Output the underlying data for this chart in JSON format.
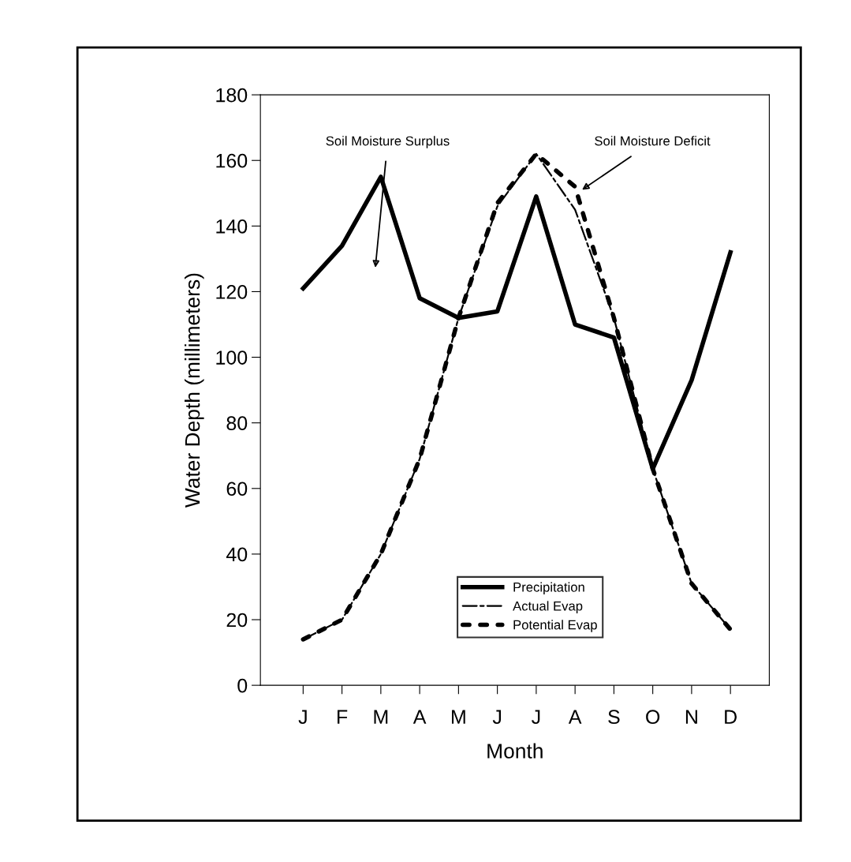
{
  "chart_data": {
    "type": "line",
    "xlabel": "Month",
    "ylabel": "Water Depth (millimeters)",
    "categories": [
      "J",
      "F",
      "M",
      "A",
      "M",
      "J",
      "J",
      "A",
      "S",
      "O",
      "N",
      "D"
    ],
    "series": [
      {
        "name": "Precipitation",
        "color": "#000000",
        "line_style": "solid",
        "values": [
          121,
          134,
          155,
          118,
          112,
          114,
          149,
          110,
          106,
          66,
          93,
          132
        ]
      },
      {
        "name": "Actual Evap",
        "color": "#000000",
        "line_style": "dashed",
        "values": [
          14,
          20,
          40,
          69,
          112,
          146,
          162,
          145,
          112,
          66,
          31,
          17
        ]
      },
      {
        "name": "Potential Evap",
        "color": "#000000",
        "line_style": "dotted",
        "values": [
          14,
          20,
          40,
          69,
          112,
          147,
          162,
          152,
          112,
          66,
          31,
          17
        ]
      }
    ],
    "ylim": [
      0,
      180
    ],
    "yticks": [
      0,
      20,
      40,
      60,
      80,
      100,
      120,
      140,
      160,
      180
    ],
    "grid": false,
    "legend": "bottom",
    "marker": "none",
    "annotations": [
      "Soil Moisture Surplus",
      "Soil Moisture Deficit"
    ]
  }
}
